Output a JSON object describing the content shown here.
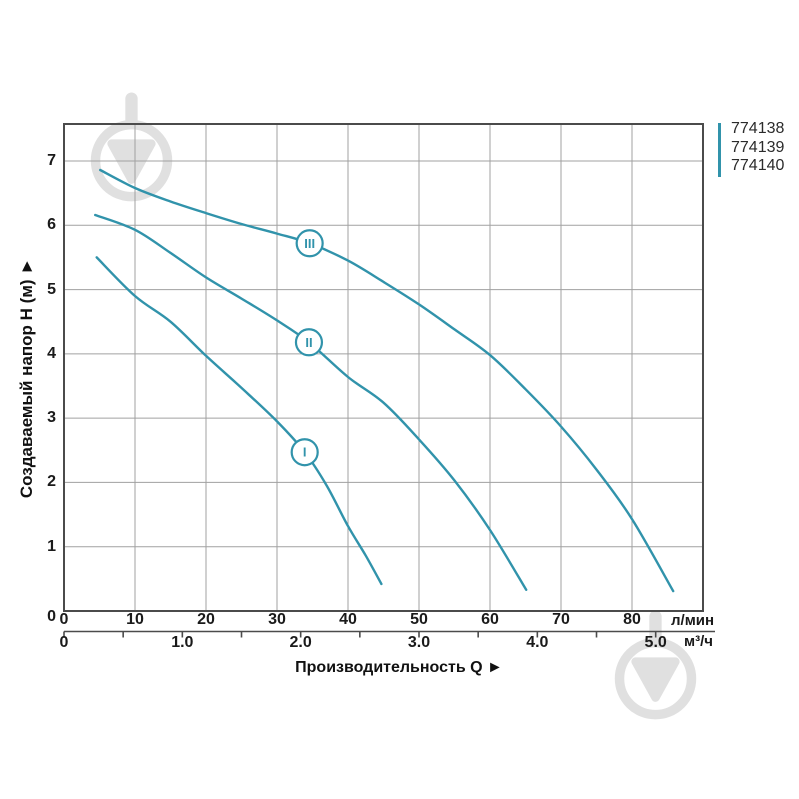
{
  "chart_data": {
    "type": "line",
    "title": "",
    "x_title": "Производительность Q ►",
    "y_axis": {
      "title": "Создаваемый напор H (м) ►",
      "unit": "м",
      "tick_values": [
        7,
        6,
        5,
        4,
        3,
        2,
        1,
        0
      ],
      "range": [
        0,
        7.6
      ],
      "gridlines": true
    },
    "x_axis_primary": {
      "unit": "л/мин",
      "tick_values": [
        0,
        10,
        20,
        30,
        40,
        50,
        60,
        70,
        80
      ],
      "range_lmin": [
        0,
        90
      ],
      "gridlines": true
    },
    "x_axis_secondary": {
      "unit": "м³/ч",
      "tick_labels": [
        "0",
        "1.0",
        "2.0",
        "3.0",
        "4.0",
        "5.0"
      ],
      "minor_tick_step": 0.5,
      "lmin_per_m3h": 16.667
    },
    "series": [
      {
        "name": "774138",
        "curve_label": "I",
        "label_pos_lmin_m": [
          33.9,
          2.47
        ],
        "points_lmin_m": [
          [
            4.6,
            5.5
          ],
          [
            10,
            4.9
          ],
          [
            15,
            4.5
          ],
          [
            20,
            3.97
          ],
          [
            25,
            3.47
          ],
          [
            30,
            2.95
          ],
          [
            33.9,
            2.47
          ],
          [
            37,
            1.95
          ],
          [
            40,
            1.32
          ],
          [
            42.5,
            0.86
          ],
          [
            44.7,
            0.42
          ]
        ]
      },
      {
        "name": "774139",
        "curve_label": "II",
        "label_pos_lmin_m": [
          34.5,
          4.18
        ],
        "points_lmin_m": [
          [
            4.4,
            6.16
          ],
          [
            10,
            5.93
          ],
          [
            15,
            5.57
          ],
          [
            20,
            5.19
          ],
          [
            25,
            4.86
          ],
          [
            30,
            4.52
          ],
          [
            34.5,
            4.18
          ],
          [
            40,
            3.64
          ],
          [
            45,
            3.24
          ],
          [
            50,
            2.67
          ],
          [
            55,
            2.03
          ],
          [
            60,
            1.26
          ],
          [
            65.1,
            0.33
          ]
        ]
      },
      {
        "name": "774140",
        "curve_label": "III",
        "label_pos_lmin_m": [
          34.6,
          5.72
        ],
        "points_lmin_m": [
          [
            5.1,
            6.86
          ],
          [
            10,
            6.58
          ],
          [
            15,
            6.37
          ],
          [
            20,
            6.19
          ],
          [
            25,
            6.02
          ],
          [
            30,
            5.87
          ],
          [
            34.6,
            5.72
          ],
          [
            40,
            5.45
          ],
          [
            45,
            5.12
          ],
          [
            50,
            4.77
          ],
          [
            55,
            4.38
          ],
          [
            60,
            3.98
          ],
          [
            65,
            3.45
          ],
          [
            70,
            2.87
          ],
          [
            75,
            2.2
          ],
          [
            80,
            1.43
          ],
          [
            85.8,
            0.31
          ]
        ]
      }
    ],
    "legend": {
      "position": "top-right"
    },
    "colors": {
      "curve": "#3193ab",
      "grid": "#a1a1a1",
      "frame": "#4b4b4b",
      "tick_text": "#1a1a1a",
      "legend_text": "#2b2b2b",
      "watermark": "#e0e0e0",
      "background": "#ffffff"
    },
    "icons": {
      "watermark_logo": "ring-with-down-triangle-and-stem"
    }
  }
}
